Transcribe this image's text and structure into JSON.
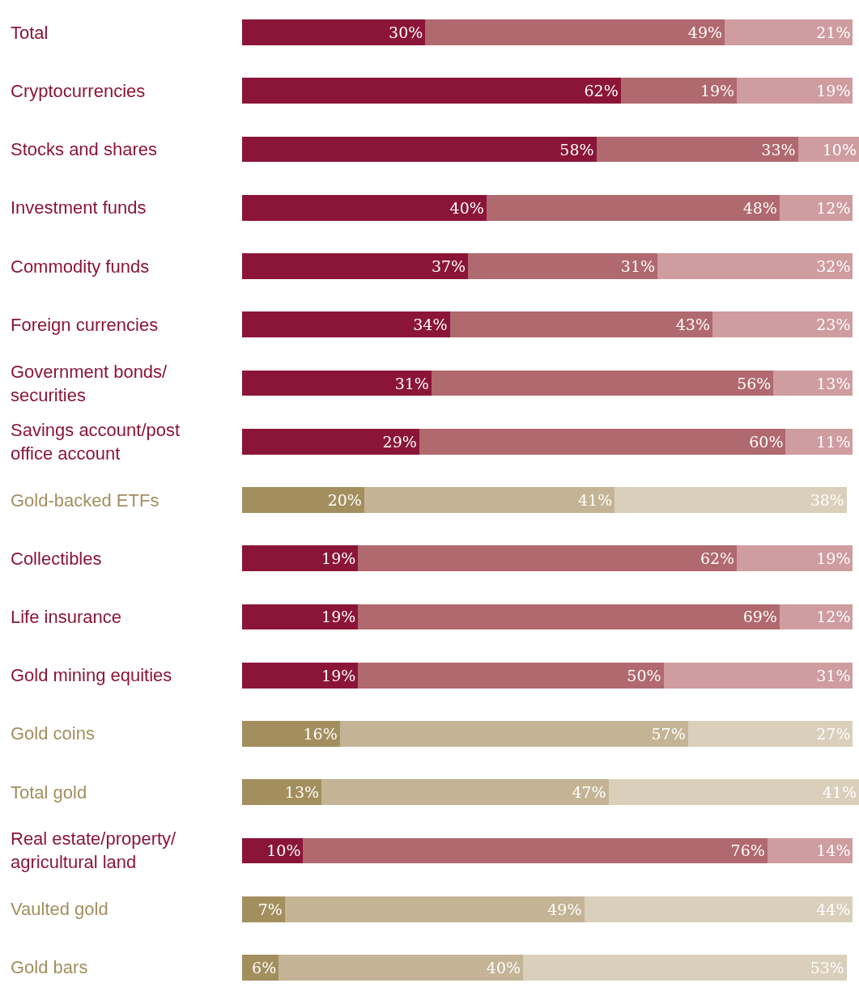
{
  "chart_data": {
    "type": "bar",
    "orientation": "horizontal",
    "stacked": true,
    "categories": [
      "Total",
      "Cryptocurrencies",
      "Stocks and shares",
      "Investment funds",
      "Commodity funds",
      "Foreign currencies",
      "Government bonds/\nsecurities",
      "Savings account/post\noffice account",
      "Gold-backed ETFs",
      "Collectibles",
      "Life insurance",
      "Gold mining equities",
      "Gold coins",
      "Total gold",
      "Real estate/property/\nagricultural land",
      "Vaulted gold",
      "Gold bars"
    ],
    "xlim": [
      0,
      101
    ],
    "series": [
      {
        "colors": [
          "#8b1538",
          "#8b1538",
          "#8b1538",
          "#8b1538",
          "#8b1538",
          "#8b1538",
          "#8b1538",
          "#8b1538",
          "#a38f5e",
          "#8b1538",
          "#8b1538",
          "#8b1538",
          "#a38f5e",
          "#a38f5e",
          "#8b1538",
          "#a38f5e",
          "#a38f5e"
        ],
        "values": [
          30,
          62,
          58,
          40,
          37,
          34,
          31,
          29,
          20,
          19,
          19,
          19,
          16,
          13,
          10,
          7,
          6
        ],
        "value_labels": [
          "30%",
          "62%",
          "58%",
          "40%",
          "37%",
          "34%",
          "31%",
          "29%",
          "20%",
          "19%",
          "19%",
          "19%",
          "16%",
          "13%",
          "10%",
          "7%",
          "6%"
        ]
      },
      {
        "colors": [
          "#b0696e",
          "#b0696e",
          "#b0696e",
          "#b0696e",
          "#b0696e",
          "#b0696e",
          "#b0696e",
          "#b0696e",
          "#c4b495",
          "#b0696e",
          "#b0696e",
          "#b0696e",
          "#c4b495",
          "#c4b495",
          "#b0696e",
          "#c4b495",
          "#c4b495"
        ],
        "values": [
          49,
          19,
          33,
          48,
          31,
          43,
          56,
          60,
          41,
          62,
          69,
          50,
          57,
          47,
          76,
          49,
          40
        ],
        "value_labels": [
          "49%",
          "19%",
          "33%",
          "48%",
          "31%",
          "43%",
          "56%",
          "60%",
          "41%",
          "62%",
          "69%",
          "50%",
          "57%",
          "47%",
          "76%",
          "49%",
          "40%"
        ]
      },
      {
        "colors": [
          "#cf9ca0",
          "#cf9ca0",
          "#cf9ca0",
          "#cf9ca0",
          "#cf9ca0",
          "#cf9ca0",
          "#cf9ca0",
          "#cf9ca0",
          "#d9cfba",
          "#cf9ca0",
          "#cf9ca0",
          "#cf9ca0",
          "#d9cfba",
          "#d9cfba",
          "#cf9ca0",
          "#d9cfba",
          "#d9cfba"
        ],
        "values": [
          21,
          19,
          10,
          12,
          32,
          23,
          13,
          11,
          38,
          19,
          12,
          31,
          27,
          41,
          14,
          44,
          53
        ],
        "value_labels": [
          "21%",
          "19%",
          "10%",
          "12%",
          "32%",
          "23%",
          "13%",
          "11%",
          "38%",
          "19%",
          "12%",
          "31%",
          "27%",
          "41%",
          "14%",
          "44%",
          "53%"
        ]
      }
    ]
  }
}
